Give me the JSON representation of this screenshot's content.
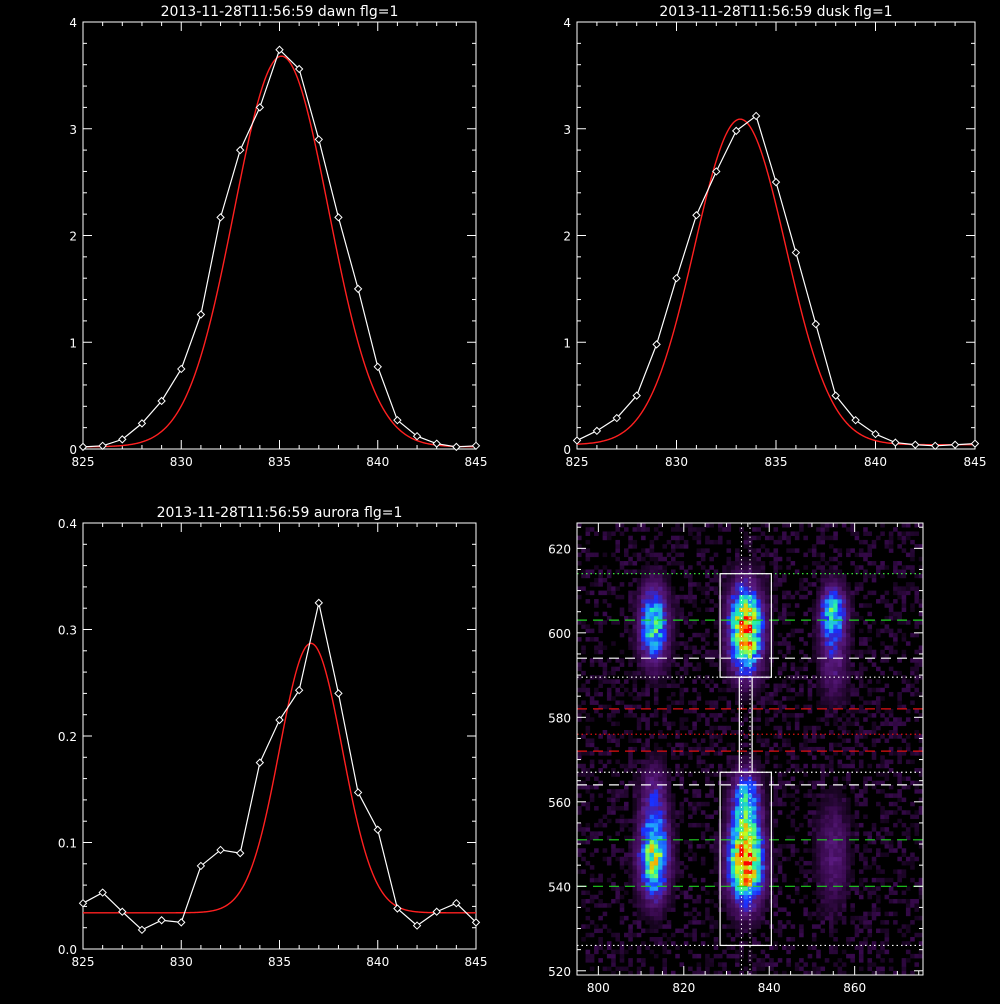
{
  "chart_data": [
    {
      "type": "line",
      "title": "2013-11-28T11:56:59 dawn flg=1",
      "xlabel": "",
      "ylabel": "",
      "xlim": [
        825,
        845
      ],
      "ylim": [
        0,
        4
      ],
      "xticks": [
        825,
        830,
        835,
        840,
        845
      ],
      "yticks": [
        0,
        1,
        2,
        3,
        4
      ],
      "colors": {
        "data": "#ffffff",
        "fit": "#ff2020"
      },
      "series": [
        {
          "role": "data",
          "marker": "diamond",
          "x": [
            825,
            826,
            827,
            828,
            829,
            830,
            831,
            832,
            833,
            834,
            835,
            836,
            837,
            838,
            839,
            840,
            841,
            842,
            843,
            844,
            845
          ],
          "y": [
            0.02,
            0.03,
            0.09,
            0.24,
            0.45,
            0.75,
            1.26,
            2.17,
            2.8,
            3.2,
            3.74,
            3.56,
            2.9,
            2.17,
            1.5,
            0.77,
            0.27,
            0.12,
            0.05,
            0.02,
            0.03
          ]
        },
        {
          "role": "fit",
          "curve": "gaussian",
          "amplitude": 3.66,
          "center": 835.1,
          "sigma": 2.4,
          "offset": 0.02
        }
      ]
    },
    {
      "type": "line",
      "title": "2013-11-28T11:56:59 dusk flg=1",
      "xlabel": "",
      "ylabel": "",
      "xlim": [
        825,
        845
      ],
      "ylim": [
        0,
        4
      ],
      "xticks": [
        825,
        830,
        835,
        840,
        845
      ],
      "yticks": [
        0,
        1,
        2,
        3,
        4
      ],
      "colors": {
        "data": "#ffffff",
        "fit": "#ff2020"
      },
      "series": [
        {
          "role": "data",
          "marker": "diamond",
          "x": [
            825,
            826,
            827,
            828,
            829,
            830,
            831,
            832,
            833,
            834,
            835,
            836,
            837,
            838,
            839,
            840,
            841,
            842,
            843,
            844,
            845
          ],
          "y": [
            0.08,
            0.17,
            0.29,
            0.5,
            0.98,
            1.6,
            2.19,
            2.6,
            2.98,
            3.12,
            2.5,
            1.84,
            1.17,
            0.5,
            0.27,
            0.14,
            0.06,
            0.04,
            0.03,
            0.04,
            0.05
          ]
        },
        {
          "role": "fit",
          "curve": "gaussian",
          "amplitude": 3.05,
          "center": 833.2,
          "sigma": 2.3,
          "offset": 0.04
        }
      ]
    },
    {
      "type": "line",
      "title": "2013-11-28T11:56:59 aurora flg=1",
      "xlabel": "",
      "ylabel": "",
      "xlim": [
        825,
        845
      ],
      "ylim": [
        0,
        0.4
      ],
      "xticks": [
        825,
        830,
        835,
        840,
        845
      ],
      "yticks": [
        0.0,
        0.1,
        0.2,
        0.3,
        0.4
      ],
      "colors": {
        "data": "#ffffff",
        "fit": "#ff2020"
      },
      "series": [
        {
          "role": "data",
          "marker": "diamond",
          "x": [
            825,
            826,
            827,
            828,
            829,
            830,
            831,
            832,
            833,
            834,
            835,
            836,
            837,
            838,
            839,
            840,
            841,
            842,
            843,
            844,
            845
          ],
          "y": [
            0.043,
            0.053,
            0.035,
            0.018,
            0.027,
            0.025,
            0.078,
            0.093,
            0.09,
            0.175,
            0.215,
            0.243,
            0.325,
            0.24,
            0.147,
            0.112,
            0.038,
            0.022,
            0.035,
            0.043,
            0.025
          ]
        },
        {
          "role": "fit",
          "curve": "gaussian",
          "amplitude": 0.253,
          "center": 836.6,
          "sigma": 1.6,
          "offset": 0.034
        }
      ]
    },
    {
      "type": "heatmap",
      "title": "",
      "xlabel": "",
      "ylabel": "",
      "xlim": [
        795,
        876
      ],
      "ylim": [
        519,
        626
      ],
      "xticks": [
        800,
        820,
        840,
        860
      ],
      "yticks": [
        520,
        540,
        560,
        580,
        600,
        620
      ],
      "colorscale": [
        "#000000",
        "#3a0a50",
        "#5a1a80",
        "#1a30ff",
        "#20a0ff",
        "#20f0b0",
        "#c0ff20",
        "#ffa000",
        "#ff0000"
      ],
      "blobs": [
        {
          "x": 813,
          "y": 602,
          "sx": 2.4,
          "sy": 6.5,
          "peak": 0.62
        },
        {
          "x": 834.5,
          "y": 601,
          "sx": 2.7,
          "sy": 7,
          "peak": 0.98
        },
        {
          "x": 855,
          "y": 605,
          "sx": 2.1,
          "sy": 4.5,
          "peak": 0.55
        },
        {
          "x": 855,
          "y": 594,
          "sx": 2.3,
          "sy": 7,
          "peak": 0.25
        },
        {
          "x": 813,
          "y": 546,
          "sx": 2.5,
          "sy": 6.5,
          "peak": 0.68
        },
        {
          "x": 813,
          "y": 560,
          "sx": 2.2,
          "sy": 6.5,
          "peak": 0.3
        },
        {
          "x": 834.5,
          "y": 546,
          "sx": 2.8,
          "sy": 7,
          "peak": 1.0
        },
        {
          "x": 834.5,
          "y": 561,
          "sx": 2.3,
          "sy": 5,
          "peak": 0.5
        },
        {
          "x": 855,
          "y": 548,
          "sx": 2.6,
          "sy": 9,
          "peak": 0.22
        }
      ],
      "boxes": [
        {
          "x0": 828.5,
          "x1": 840.5,
          "y0": 589.5,
          "y1": 614
        },
        {
          "x0": 828.5,
          "x1": 840.5,
          "y0": 526,
          "y1": 567
        },
        {
          "x0": 833,
          "x1": 836,
          "y0": 567,
          "y1": 589.5
        }
      ],
      "vertical_lines": [
        833.5,
        835.5
      ],
      "horizontal_lines": [
        {
          "y": 614,
          "color": "#40ff40",
          "style": "dotted"
        },
        {
          "y": 603,
          "color": "#20d020",
          "style": "dashed"
        },
        {
          "y": 594,
          "color": "#ffffff",
          "style": "dashed"
        },
        {
          "y": 589.5,
          "color": "#ffffff",
          "style": "dotted"
        },
        {
          "y": 582,
          "color": "#e01010",
          "style": "dashed"
        },
        {
          "y": 576,
          "color": "#e01010",
          "style": "dotted"
        },
        {
          "y": 572,
          "color": "#e01010",
          "style": "dashed"
        },
        {
          "y": 567,
          "color": "#ffffff",
          "style": "dotted"
        },
        {
          "y": 564,
          "color": "#ffffff",
          "style": "dashed"
        },
        {
          "y": 551,
          "color": "#20d020",
          "style": "dashed"
        },
        {
          "y": 540,
          "color": "#20d020",
          "style": "dashed"
        },
        {
          "y": 526,
          "color": "#ffffff",
          "style": "dotted"
        }
      ]
    }
  ]
}
